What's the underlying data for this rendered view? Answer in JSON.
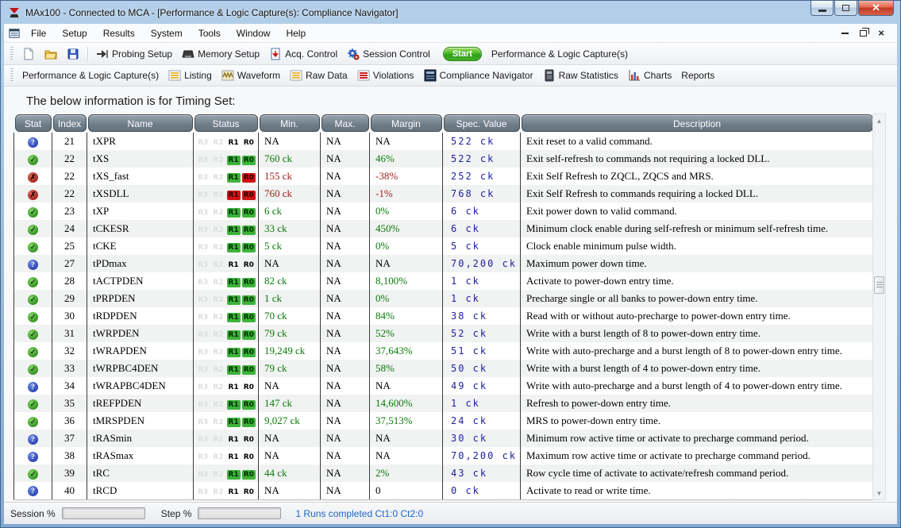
{
  "titlebar": {
    "title": "MAx100 - Connected to MCA - [Performance & Logic Capture(s): Compliance Navigator]"
  },
  "menu": {
    "items": [
      "File",
      "Setup",
      "Results",
      "System",
      "Tools",
      "Window",
      "Help"
    ]
  },
  "toolbar": {
    "probing": "Probing Setup",
    "memory": "Memory Setup",
    "acq": "Acq. Control",
    "session": "Session Control",
    "start": "Start",
    "capture": "Performance & Logic Capture(s)"
  },
  "tabs": [
    "Performance & Logic Capture(s)",
    "Listing",
    "Waveform",
    "Raw Data",
    "Violations",
    "Compliance Navigator",
    "Raw Statistics",
    "Charts",
    "Reports"
  ],
  "heading": "The below information is for Timing Set:",
  "table": {
    "headers": [
      "Stat",
      "Index",
      "Name",
      "Status",
      "Min.",
      "Max.",
      "Margin",
      "Spec. Value",
      "Description"
    ],
    "status_labels": [
      "R3",
      "R2",
      "R1",
      "R0"
    ],
    "rows": [
      {
        "stat": "question",
        "index": "21",
        "name": "tXPR",
        "r1": "plain",
        "r0": "plain",
        "min": "NA",
        "max": "NA",
        "margin": "NA",
        "spec": "522 ck",
        "desc": "Exit reset to a valid command."
      },
      {
        "stat": "pass",
        "index": "22",
        "name": "tXS",
        "r1": "green",
        "r0": "green",
        "min": "760 ck",
        "max": "NA",
        "margin": "46%",
        "spec": "522 ck",
        "desc": "Exit self-refresh to commands not requiring a locked DLL."
      },
      {
        "stat": "fail",
        "index": "22",
        "name": "tXS_fast",
        "r1": "green",
        "r0": "red",
        "min": "155 ck",
        "max": "NA",
        "margin": "-38%",
        "spec": "252 ck",
        "desc": "Exit Self Refresh to ZQCL, ZQCS and MRS."
      },
      {
        "stat": "fail",
        "index": "22",
        "name": "tXSDLL",
        "r1": "red",
        "r0": "red",
        "min": "760 ck",
        "max": "NA",
        "margin": "-1%",
        "spec": "768 ck",
        "desc": "Exit Self Refresh to commands requiring a locked DLL."
      },
      {
        "stat": "pass",
        "index": "23",
        "name": "tXP",
        "r1": "green",
        "r0": "green",
        "min": "6 ck",
        "max": "NA",
        "margin": "0%",
        "spec": "6 ck",
        "desc": "Exit power down to valid command."
      },
      {
        "stat": "pass",
        "index": "24",
        "name": "tCKESR",
        "r1": "green",
        "r0": "green",
        "min": "33 ck",
        "max": "NA",
        "margin": "450%",
        "spec": "6 ck",
        "desc": "Minimum clock enable during self-refresh or minimum self-refresh time."
      },
      {
        "stat": "pass",
        "index": "25",
        "name": "tCKE",
        "r1": "green",
        "r0": "green",
        "min": "5 ck",
        "max": "NA",
        "margin": "0%",
        "spec": "5 ck",
        "desc": "Clock enable minimum pulse width."
      },
      {
        "stat": "question",
        "index": "27",
        "name": "tPDmax",
        "r1": "plain",
        "r0": "plain",
        "min": "NA",
        "max": "NA",
        "margin": "NA",
        "spec": "70,200 ck",
        "desc": "Maximum power down time."
      },
      {
        "stat": "pass",
        "index": "28",
        "name": "tACTPDEN",
        "r1": "green",
        "r0": "green",
        "min": "82 ck",
        "max": "NA",
        "margin": "8,100%",
        "spec": "1 ck",
        "desc": "Activate to power-down entry time."
      },
      {
        "stat": "pass",
        "index": "29",
        "name": "tPRPDEN",
        "r1": "green",
        "r0": "green",
        "min": "1 ck",
        "max": "NA",
        "margin": "0%",
        "spec": "1 ck",
        "desc": "Precharge single or all banks to power-down entry time."
      },
      {
        "stat": "pass",
        "index": "30",
        "name": "tRDPDEN",
        "r1": "green",
        "r0": "green",
        "min": "70 ck",
        "max": "NA",
        "margin": "84%",
        "spec": "38 ck",
        "desc": "Read with or without auto-precharge to power-down entry time."
      },
      {
        "stat": "pass",
        "index": "31",
        "name": "tWRPDEN",
        "r1": "green",
        "r0": "green",
        "min": "79 ck",
        "max": "NA",
        "margin": "52%",
        "spec": "52 ck",
        "desc": "Write with a burst length of 8 to power-down entry time."
      },
      {
        "stat": "pass",
        "index": "32",
        "name": "tWRAPDEN",
        "r1": "green",
        "r0": "green",
        "min": "19,249 ck",
        "max": "NA",
        "margin": "37,643%",
        "spec": "51 ck",
        "desc": "Write with auto-precharge and a burst length of 8 to power-down entry time."
      },
      {
        "stat": "pass",
        "index": "33",
        "name": "tWRPBC4DEN",
        "r1": "green",
        "r0": "green",
        "min": "79 ck",
        "max": "NA",
        "margin": "58%",
        "spec": "50 ck",
        "desc": "Write with a burst length of 4 to power-down entry time."
      },
      {
        "stat": "question",
        "index": "34",
        "name": "tWRAPBC4DEN",
        "r1": "plain",
        "r0": "plain",
        "min": "NA",
        "max": "NA",
        "margin": "NA",
        "spec": "49 ck",
        "desc": "Write with auto-precharge and a burst length of 4 to power-down entry time."
      },
      {
        "stat": "pass",
        "index": "35",
        "name": "tREFPDEN",
        "r1": "green",
        "r0": "green",
        "min": "147 ck",
        "max": "NA",
        "margin": "14,600%",
        "spec": "1 ck",
        "desc": "Refresh to power-down entry time."
      },
      {
        "stat": "pass",
        "index": "36",
        "name": "tMRSPDEN",
        "r1": "green",
        "r0": "green",
        "min": "9,027 ck",
        "max": "NA",
        "margin": "37,513%",
        "spec": "24 ck",
        "desc": "MRS to power-down entry time."
      },
      {
        "stat": "question",
        "index": "37",
        "name": "tRASmin",
        "r1": "plain",
        "r0": "plain",
        "min": "NA",
        "max": "NA",
        "margin": "NA",
        "spec": "30 ck",
        "desc": "Minimum row active time or activate to precharge command period."
      },
      {
        "stat": "question",
        "index": "38",
        "name": "tRASmax",
        "r1": "plain",
        "r0": "plain",
        "min": "NA",
        "max": "NA",
        "margin": "NA",
        "spec": "70,200 ck",
        "desc": "Maximum row active time or activate to precharge command period."
      },
      {
        "stat": "pass",
        "index": "39",
        "name": "tRC",
        "r1": "green",
        "r0": "green",
        "min": "44 ck",
        "max": "NA",
        "margin": "2%",
        "spec": "43 ck",
        "desc": "Row cycle time of activate to activate/refresh command period."
      },
      {
        "stat": "question",
        "index": "40",
        "name": "tRCD",
        "r1": "plain",
        "r0": "plain",
        "min": "NA",
        "max": "NA",
        "margin": "0",
        "spec": "0 ck",
        "desc": "Activate to read or write time."
      }
    ]
  },
  "statusbar": {
    "session_label": "Session %",
    "step_label": "Step %",
    "message": "1 Runs completed Ct1:0 Ct2:0"
  }
}
